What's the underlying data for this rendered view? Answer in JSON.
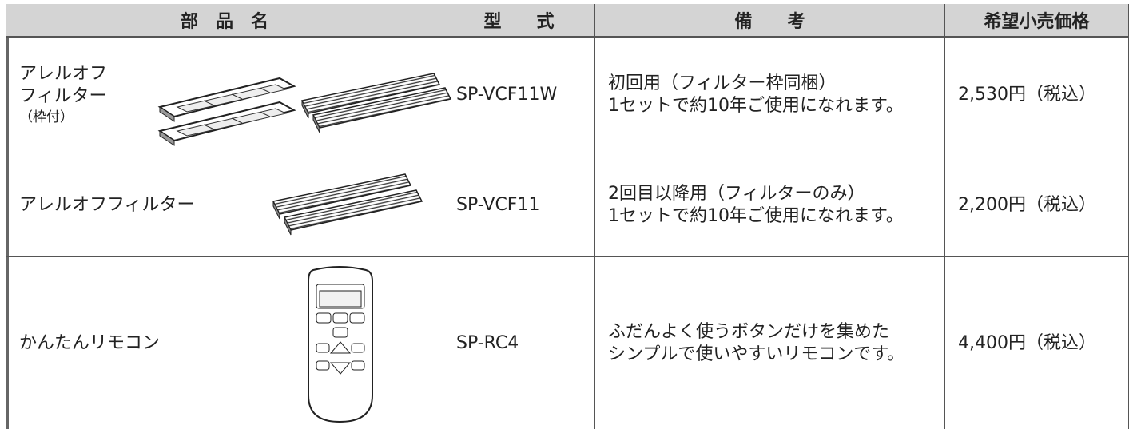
{
  "table": {
    "header": [
      "部　品　名",
      "型　　式",
      "備　　考",
      "希望小売価格"
    ],
    "rows": [
      {
        "name": [
          "アレルオフ",
          "フィルター",
          "（枠付）"
        ],
        "model": "SP-VCF11W",
        "remarks": [
          "初回用（フィルター枠同梱）",
          "1セットで約10年ご使用になれます。"
        ],
        "price": "2,530円（税込）"
      },
      {
        "name": [
          "アレルオフフィルター"
        ],
        "model": "SP-VCF11",
        "remarks": [
          "2回目以降用（フィルターのみ）",
          "1セットで約10年ご使用になれます。"
        ],
        "price": "2,200円（税込）"
      },
      {
        "name": [
          "かんたんリモコン"
        ],
        "model": "SP-RC4",
        "remarks": [
          "ふだんよく使うボタンだけを集めた",
          "シンプルで使いやすいリモコンです。"
        ],
        "price": "4,400円（税込）"
      }
    ]
  }
}
